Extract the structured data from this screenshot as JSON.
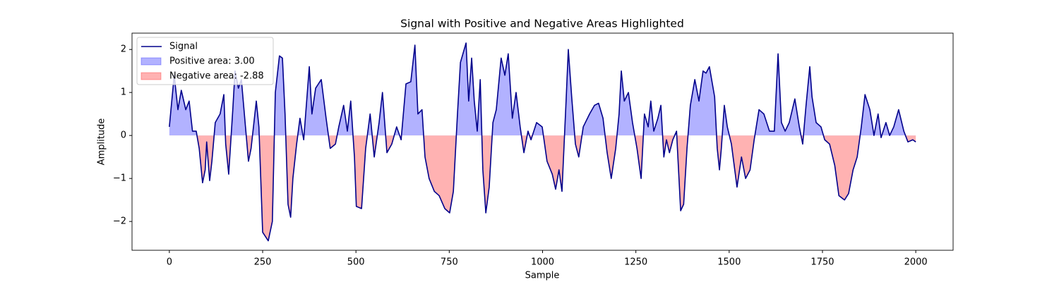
{
  "chart_data": {
    "type": "line",
    "title": "Signal with Positive and Negative Areas Highlighted",
    "x_label": "Sample",
    "y_label": "Amplitude",
    "x": [
      0,
      13,
      23,
      32,
      44,
      53,
      62,
      72,
      80,
      89,
      96,
      100,
      108,
      114,
      123,
      136,
      146,
      151,
      159,
      170,
      176,
      185,
      193,
      204,
      212,
      219,
      233,
      240,
      250,
      265,
      276,
      284,
      295,
      303,
      310,
      318,
      325,
      331,
      341,
      350,
      360,
      375,
      382,
      392,
      407,
      420,
      431,
      445,
      454,
      467,
      477,
      486,
      496,
      501,
      515,
      526,
      538,
      549,
      562,
      571,
      583,
      596,
      609,
      621,
      634,
      647,
      658,
      666,
      677,
      685,
      696,
      710,
      723,
      738,
      751,
      761,
      772,
      780,
      795,
      802,
      810,
      817,
      825,
      833,
      840,
      848,
      857,
      867,
      876,
      889,
      899,
      908,
      919,
      929,
      940,
      950,
      961,
      969,
      984,
      999,
      1012,
      1026,
      1035,
      1044,
      1052,
      1063,
      1069,
      1078,
      1088,
      1097,
      1109,
      1126,
      1139,
      1150,
      1162,
      1173,
      1184,
      1196,
      1205,
      1211,
      1219,
      1230,
      1241,
      1253,
      1264,
      1273,
      1283,
      1290,
      1298,
      1309,
      1317,
      1325,
      1332,
      1340,
      1349,
      1359,
      1370,
      1378,
      1387,
      1396,
      1408,
      1419,
      1430,
      1438,
      1447,
      1461,
      1468,
      1474,
      1479,
      1487,
      1495,
      1506,
      1521,
      1533,
      1544,
      1556,
      1567,
      1580,
      1593,
      1608,
      1621,
      1631,
      1640,
      1650,
      1661,
      1676,
      1688,
      1697,
      1706,
      1716,
      1722,
      1733,
      1746,
      1756,
      1769,
      1783,
      1794,
      1809,
      1820,
      1832,
      1843,
      1854,
      1864,
      1877,
      1888,
      1899,
      1907,
      1920,
      1930,
      1941,
      1954,
      1968,
      1979,
      1992,
      2000
    ],
    "series": [
      {
        "name": "Signal",
        "color": "#00008b",
        "values": [
          0.2,
          1.4,
          0.6,
          1.05,
          0.6,
          0.8,
          0.1,
          0.1,
          -0.3,
          -1.1,
          -0.8,
          -0.15,
          -1.05,
          -0.6,
          0.3,
          0.5,
          0.95,
          -0.2,
          -0.9,
          0.6,
          1.5,
          1.1,
          1.3,
          0.2,
          -0.6,
          -0.3,
          0.8,
          0.2,
          -2.25,
          -2.45,
          -2.0,
          1.0,
          1.85,
          1.8,
          0.5,
          -1.6,
          -1.9,
          -1.0,
          -0.2,
          0.4,
          -0.1,
          1.6,
          0.5,
          1.1,
          1.3,
          0.4,
          -0.3,
          -0.2,
          0.2,
          0.7,
          0.1,
          0.8,
          -0.5,
          -1.65,
          -1.7,
          -0.3,
          0.5,
          -0.5,
          0.3,
          1.0,
          -0.4,
          -0.2,
          0.2,
          -0.1,
          1.2,
          1.25,
          2.1,
          0.5,
          0.6,
          -0.5,
          -1.0,
          -1.3,
          -1.4,
          -1.7,
          -1.8,
          -1.3,
          0.5,
          1.7,
          2.15,
          0.8,
          1.8,
          0.8,
          0.1,
          1.3,
          -0.8,
          -1.8,
          -1.2,
          0.3,
          0.6,
          1.8,
          1.4,
          1.9,
          0.4,
          1.0,
          0.2,
          -0.4,
          0.1,
          -0.1,
          0.3,
          0.2,
          -0.6,
          -0.9,
          -1.25,
          -0.8,
          -1.3,
          0.8,
          2.0,
          0.9,
          -0.2,
          -0.5,
          0.2,
          0.5,
          0.7,
          0.75,
          0.4,
          -0.4,
          -1.0,
          -0.3,
          0.5,
          1.5,
          0.8,
          1.0,
          0.3,
          -0.3,
          -1.0,
          0.5,
          0.2,
          0.8,
          0.1,
          0.4,
          0.7,
          -0.5,
          -0.1,
          -0.4,
          -0.1,
          0.1,
          -1.75,
          -1.6,
          -0.3,
          0.7,
          1.3,
          0.8,
          1.5,
          1.45,
          1.6,
          0.9,
          -0.3,
          -0.8,
          -0.3,
          0.7,
          0.2,
          -0.2,
          -1.2,
          -0.5,
          -1.0,
          -0.8,
          -0.1,
          0.6,
          0.5,
          0.1,
          0.1,
          1.9,
          0.3,
          0.1,
          0.3,
          0.85,
          0.2,
          -0.2,
          0.7,
          1.6,
          0.9,
          0.3,
          0.2,
          -0.1,
          -0.2,
          -0.7,
          -1.4,
          -1.5,
          -1.35,
          -0.8,
          -0.5,
          0.2,
          0.95,
          0.6,
          0.0,
          0.5,
          -0.05,
          0.3,
          0.0,
          0.2,
          0.6,
          0.1,
          -0.15,
          -0.1,
          -0.15
        ]
      }
    ],
    "areas": [
      {
        "name": "Positive area: 3.00",
        "color": "#0000ff",
        "alpha": 0.3
      },
      {
        "name": "Negative area: -2.88",
        "color": "#ff0000",
        "alpha": 0.3
      }
    ],
    "xlim": [
      -100,
      2100
    ],
    "ylim": [
      -2.67,
      2.38
    ],
    "xticks": [
      0,
      250,
      500,
      750,
      1000,
      1250,
      1500,
      1750,
      2000
    ],
    "yticks": [
      {
        "value": -2,
        "label": "−2"
      },
      {
        "value": -1,
        "label": "−1"
      },
      0,
      1,
      2
    ],
    "legend": "upper left"
  }
}
